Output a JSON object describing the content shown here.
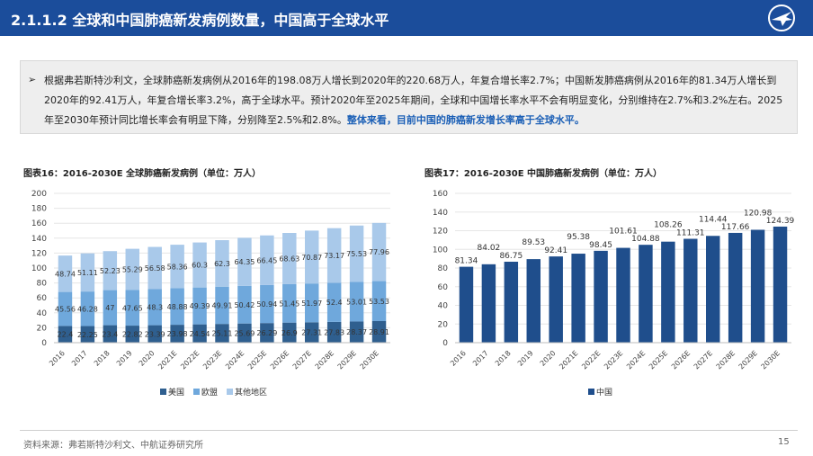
{
  "header": {
    "title": "2.1.1.2 全球和中国肺癌新发病例数量，中国高于全球水平",
    "logo_icon": "airplane-logo-icon"
  },
  "summary": {
    "bullet": "➢",
    "text_main": "根据弗若斯特沙利文，全球肺癌新发病例从2016年的198.08万人增长到2020年的220.68万人，年复合增长率2.7%；中国新发肺癌病例从2016年的81.34万人增长到2020年的92.41万人，年复合增长率3.2%，高于全球水平。预计2020年至2025年期间，全球和中国增长率水平不会有明显变化，分别维持在2.7%和3.2%左右。2025年至2030年预计同比增长率会有明显下降，分别降至2.5%和2.8%。",
    "text_highlight": "整体来看，目前中国的肺癌新发增长率高于全球水平。"
  },
  "chart_data": [
    {
      "type": "bar",
      "stacked": true,
      "title": "图表16：2016-2030E 全球肺癌新发病例（单位：万人）",
      "categories": [
        "2016",
        "2017",
        "2018",
        "2019",
        "2020",
        "2021E",
        "2022E",
        "2023E",
        "2024E",
        "2025E",
        "2026E",
        "2027E",
        "2028E",
        "2029E",
        "2030E"
      ],
      "series": [
        {
          "name": "美国",
          "color": "#2f5f8f",
          "values": [
            22.4,
            22.25,
            23.4,
            22.82,
            23.39,
            23.98,
            24.54,
            25.11,
            25.69,
            26.29,
            26.9,
            27.31,
            27.83,
            28.37,
            28.91
          ]
        },
        {
          "name": "欧盟",
          "color": "#6fa8dc",
          "values": [
            45.56,
            46.28,
            47,
            47.65,
            48.3,
            48.88,
            49.39,
            49.91,
            50.42,
            50.94,
            51.45,
            51.97,
            52.4,
            53.01,
            53.53
          ]
        },
        {
          "name": "其他地区",
          "color": "#a9c9ea",
          "values": [
            48.74,
            51.11,
            52.23,
            55.29,
            56.58,
            58.36,
            60.3,
            62.3,
            64.35,
            66.45,
            68.63,
            70.87,
            73.17,
            75.53,
            77.96
          ]
        }
      ],
      "ylim": [
        0,
        200
      ],
      "yticks": [
        0,
        20,
        40,
        60,
        80,
        100,
        120,
        140,
        160,
        180,
        200
      ],
      "legend": "bottom"
    },
    {
      "type": "bar",
      "title": "图表17：2016-2030E 中国肺癌新发病例（单位：万人）",
      "categories": [
        "2016",
        "2017",
        "2018",
        "2019",
        "2020",
        "2021E",
        "2022E",
        "2023E",
        "2024E",
        "2025E",
        "2026E",
        "2027E",
        "2028E",
        "2029E",
        "2030E"
      ],
      "series": [
        {
          "name": "中国",
          "color": "#1f4e8c",
          "values": [
            81.34,
            84.02,
            86.75,
            89.53,
            92.41,
            95.38,
            98.45,
            101.61,
            104.88,
            108.26,
            111.31,
            114.44,
            117.66,
            120.98,
            124.39
          ]
        }
      ],
      "ylim": [
        0,
        160
      ],
      "yticks": [
        0,
        20,
        40,
        60,
        80,
        100,
        120,
        140,
        160
      ],
      "legend": "bottom"
    }
  ],
  "footer": {
    "source": "资料来源：弗若斯特沙利文、中航证券研究所",
    "page": "15"
  }
}
